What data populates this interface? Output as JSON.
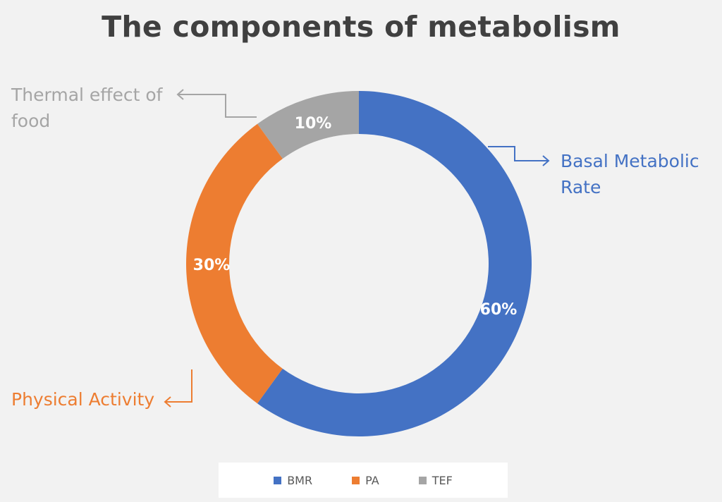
{
  "chart_data": {
    "type": "pie",
    "subtype": "donut",
    "title": "The components of metabolism",
    "slices": [
      {
        "key": "TEF",
        "label": "Thermal effect of food",
        "value": 10,
        "value_label": "10%",
        "color": "#a5a5a5"
      },
      {
        "key": "BMR",
        "label": "Basal Metabolic Rate",
        "value": 60,
        "value_label": "60%",
        "color": "#4472c4"
      },
      {
        "key": "PA",
        "label": "Physical Activity",
        "value": 30,
        "value_label": "30%",
        "color": "#ed7d31"
      }
    ],
    "legend": {
      "placement": "bottom",
      "entries": [
        "BMR",
        "PA",
        "TEF"
      ]
    }
  },
  "callouts": {
    "tef_line1": "Thermal effect of",
    "tef_line2": "food",
    "bmr_line1": "Basal Metabolic",
    "bmr_line2": "Rate",
    "pa_line1": "Physical Activity"
  },
  "legend_labels": {
    "bmr": "BMR",
    "pa": "PA",
    "tef": "TEF"
  },
  "colors": {
    "bmr": "#4472c4",
    "pa": "#ed7d31",
    "tef": "#a5a5a5",
    "callout_tef": "#a5a5a5",
    "callout_bmr": "#4472c4",
    "callout_pa": "#ed7d31"
  }
}
